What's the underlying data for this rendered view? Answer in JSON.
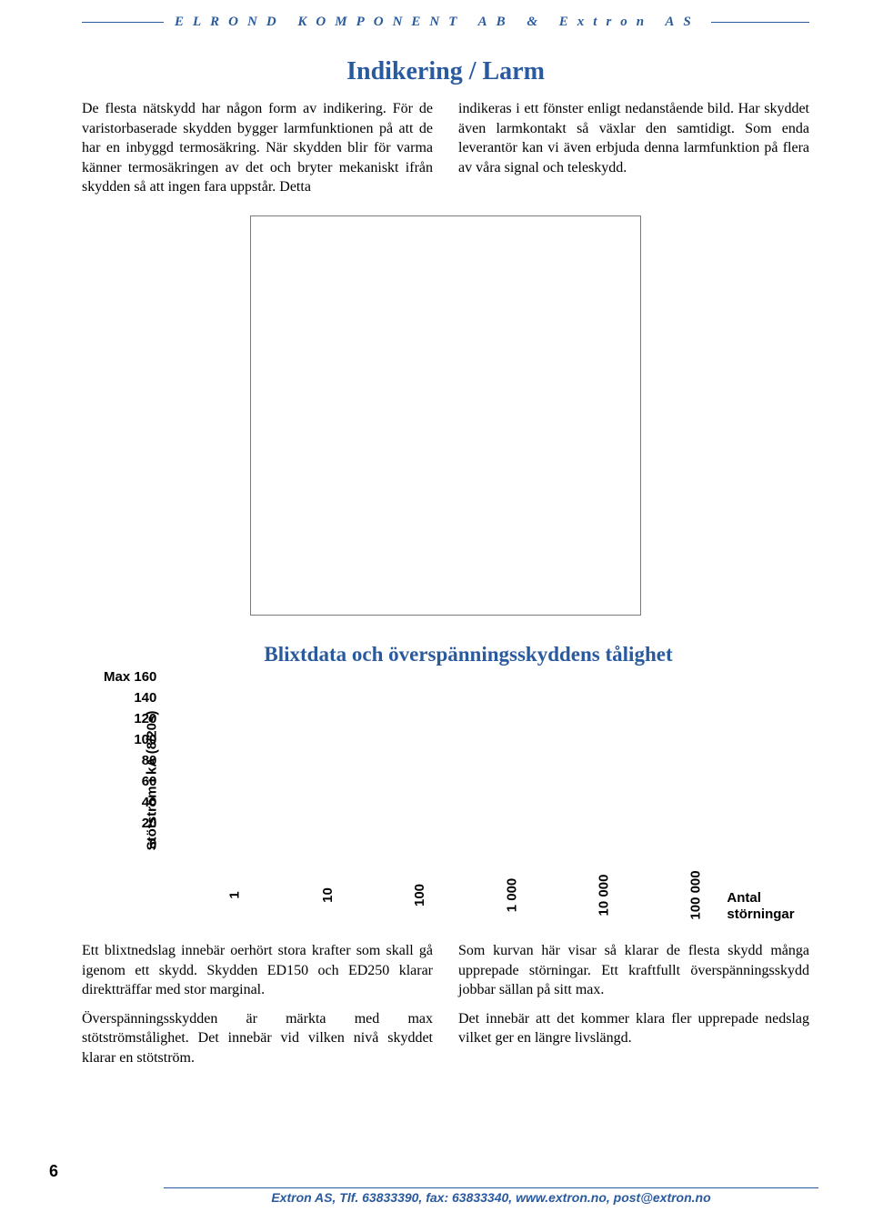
{
  "header": {
    "text": "ELROND KOMPONENT AB & Extron AS"
  },
  "section1": {
    "title": "Indikering / Larm",
    "col1": "De flesta nätskydd har någon form av indikering. För de varistorbaserade skydden bygger larmfunktionen på att de har en inbyggd termosäkring. När skydden blir för varma känner termosäkringen av det och bryter mekaniskt ifrån skydden så att ingen fara uppstår. Detta",
    "col2": "indikeras i ett fönster enligt nedanstående bild. Har skyddet även larmkontakt så växlar den samtidigt. Som enda leverantör kan vi även erbjuda denna larmfunktion på flera av våra signal och teleskydd."
  },
  "chart": {
    "title": "Blixtdata och överspänningsskyddens tålighet",
    "ylabel": "Stötström i kA (8/20s)",
    "yticks": [
      "Max 160",
      "140",
      "120",
      "100",
      "80",
      "60",
      "40",
      "20",
      "0"
    ],
    "xticks": [
      "1",
      "10",
      "100",
      "1 000",
      "10 000",
      "100 000"
    ],
    "xend": "Antal störningar",
    "type": "bar",
    "ylim": [
      0,
      160
    ],
    "ytick_step": 20,
    "title_color": "#2a5a9e",
    "title_fontsize": 23,
    "label_fontsize": 15,
    "font_family_axes": "Arial",
    "background_color": "#ffffff"
  },
  "section2": {
    "col1_p1": "Ett blixtnedslag innebär oerhört stora krafter som skall gå igenom ett skydd. Skydden ED150 och ED250 klarar direktträffar med stor marginal.",
    "col1_p2": "Överspänningsskydden är märkta med max stötströmstålighet. Det innebär vid vilken nivå skyddet klarar en stötström.",
    "col2_p1": "Som kurvan här visar så klarar de flesta skydd många upprepade störningar. Ett kraftfullt överspänningsskydd jobbar sällan på sitt max.",
    "col2_p2": "Det innebär att det kommer klara fler upprepade nedslag vilket ger en längre livslängd."
  },
  "page_number": "6",
  "footer": "Extron AS, Tlf. 63833390, fax: 63833340, www.extron.no, post@extron.no"
}
